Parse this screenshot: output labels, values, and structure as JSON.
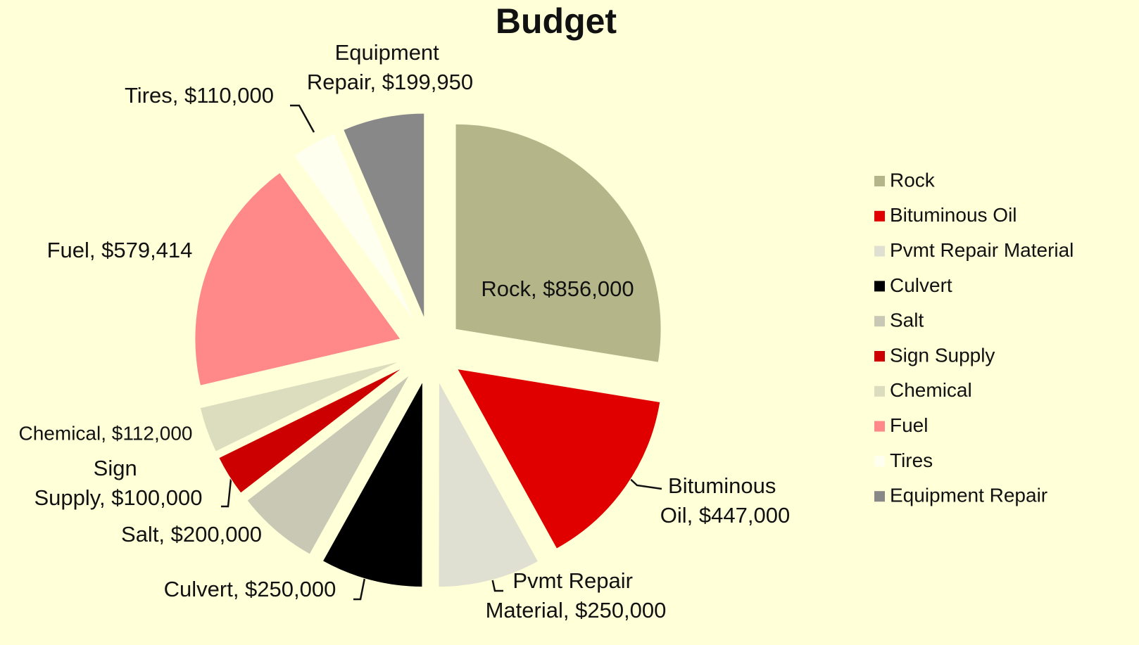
{
  "chart_data": {
    "type": "pie",
    "title": "Budget",
    "categories": [
      "Rock",
      "Bituminous Oil",
      "Pvmt Repair Material",
      "Culvert",
      "Salt",
      "Sign Supply",
      "Chemical",
      "Fuel",
      "Tires",
      "Equipment Repair"
    ],
    "values": [
      856000,
      447000,
      250000,
      250000,
      200000,
      100000,
      112000,
      579414,
      110000,
      199950
    ],
    "value_labels": [
      "Rock, $856,000",
      "Bituminous Oil, $447,000",
      "Pvmt Repair Material, $250,000",
      "Culvert, $250,000",
      "Salt, $200,000",
      "Sign Supply, $100,000",
      "Chemical, $112,000",
      "Fuel, $579,414",
      "Tires, $110,000",
      "Equipment Repair, $199,950"
    ],
    "colors": [
      "#b5b58a",
      "#e00000",
      "#e0e0d2",
      "#000000",
      "#c8c8b4",
      "#cc0000",
      "#dcdcbe",
      "#ff8888",
      "#fffff0",
      "#888888"
    ],
    "legend": "right"
  }
}
